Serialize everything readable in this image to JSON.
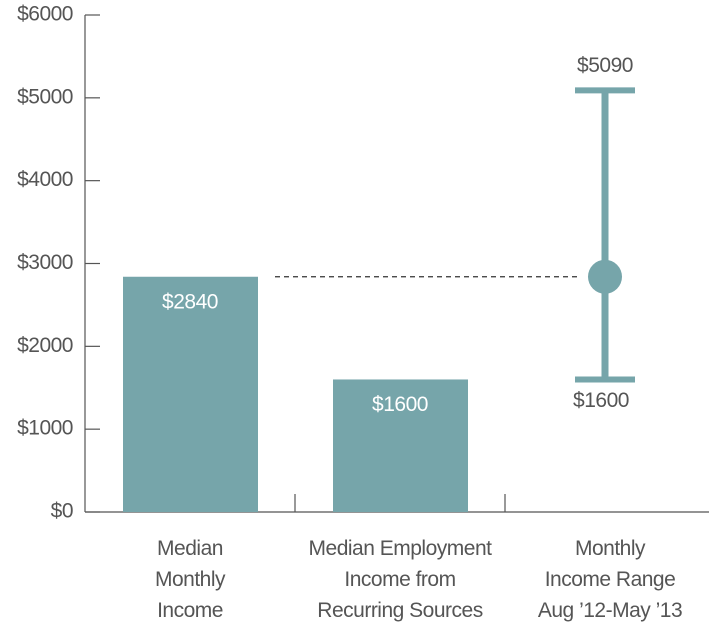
{
  "chart_data": {
    "type": "bar",
    "categories": [
      [
        "Median",
        "Monthly",
        "Income"
      ],
      [
        "Median Employment",
        "Income from",
        "Recurring Sources"
      ],
      [
        "Monthly",
        "Income Range",
        "Aug ’12-May ’13"
      ]
    ],
    "values": [
      2840,
      1600,
      null
    ],
    "value_labels": [
      "$2840",
      "$1600",
      null
    ],
    "color": "#76a5aa",
    "range": {
      "category": 2,
      "values": [
        1600,
        5090
      ],
      "value_labels": [
        "$1600",
        "$5090"
      ],
      "median": 2840
    },
    "ylim": [
      0,
      6000
    ],
    "yticks": [
      {
        "value": 0,
        "label": "$0"
      },
      {
        "value": 1000,
        "label": "$1000"
      },
      {
        "value": 2000,
        "label": "$2000"
      },
      {
        "value": 3000,
        "label": "$3000"
      },
      {
        "value": 4000,
        "label": "$4000"
      },
      {
        "value": 5000,
        "label": "$5000"
      },
      {
        "value": 6000,
        "label": "$6000"
      }
    ]
  }
}
